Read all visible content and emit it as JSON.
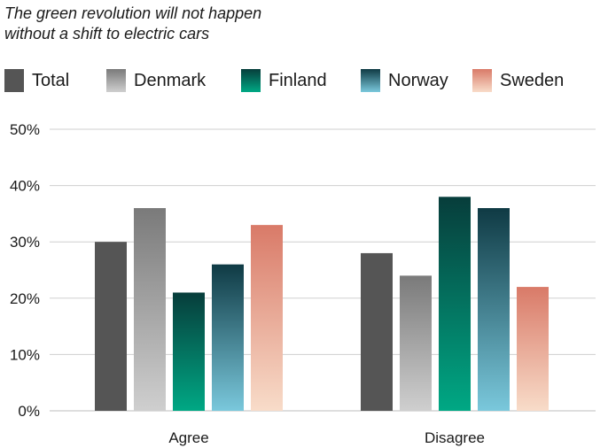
{
  "title_lines": [
    "The green revolution will not happen",
    "without a shift to electric cars"
  ],
  "chart_data": {
    "type": "bar",
    "title": "The green revolution will not happen without a shift to electric cars",
    "categories": [
      "Agree",
      "Disagree"
    ],
    "series": [
      {
        "name": "Total",
        "values": [
          30,
          28
        ],
        "color_top": "#555555",
        "color_bottom": "#555555"
      },
      {
        "name": "Denmark",
        "values": [
          36,
          24
        ],
        "color_top": "#7a7a7a",
        "color_bottom": "#cfcfcf"
      },
      {
        "name": "Finland",
        "values": [
          21,
          38
        ],
        "color_top": "#073d3b",
        "color_bottom": "#00a884"
      },
      {
        "name": "Norway",
        "values": [
          26,
          36
        ],
        "color_top": "#0f3a44",
        "color_bottom": "#7ac8dc"
      },
      {
        "name": "Sweden",
        "values": [
          33,
          22
        ],
        "color_top": "#d97a68",
        "color_bottom": "#f8dcc9"
      }
    ],
    "ylim": [
      0,
      50
    ],
    "yticks": [
      "0%",
      "10%",
      "20%",
      "30%",
      "40%",
      "50%"
    ],
    "grid": true,
    "legend_position": "top"
  }
}
